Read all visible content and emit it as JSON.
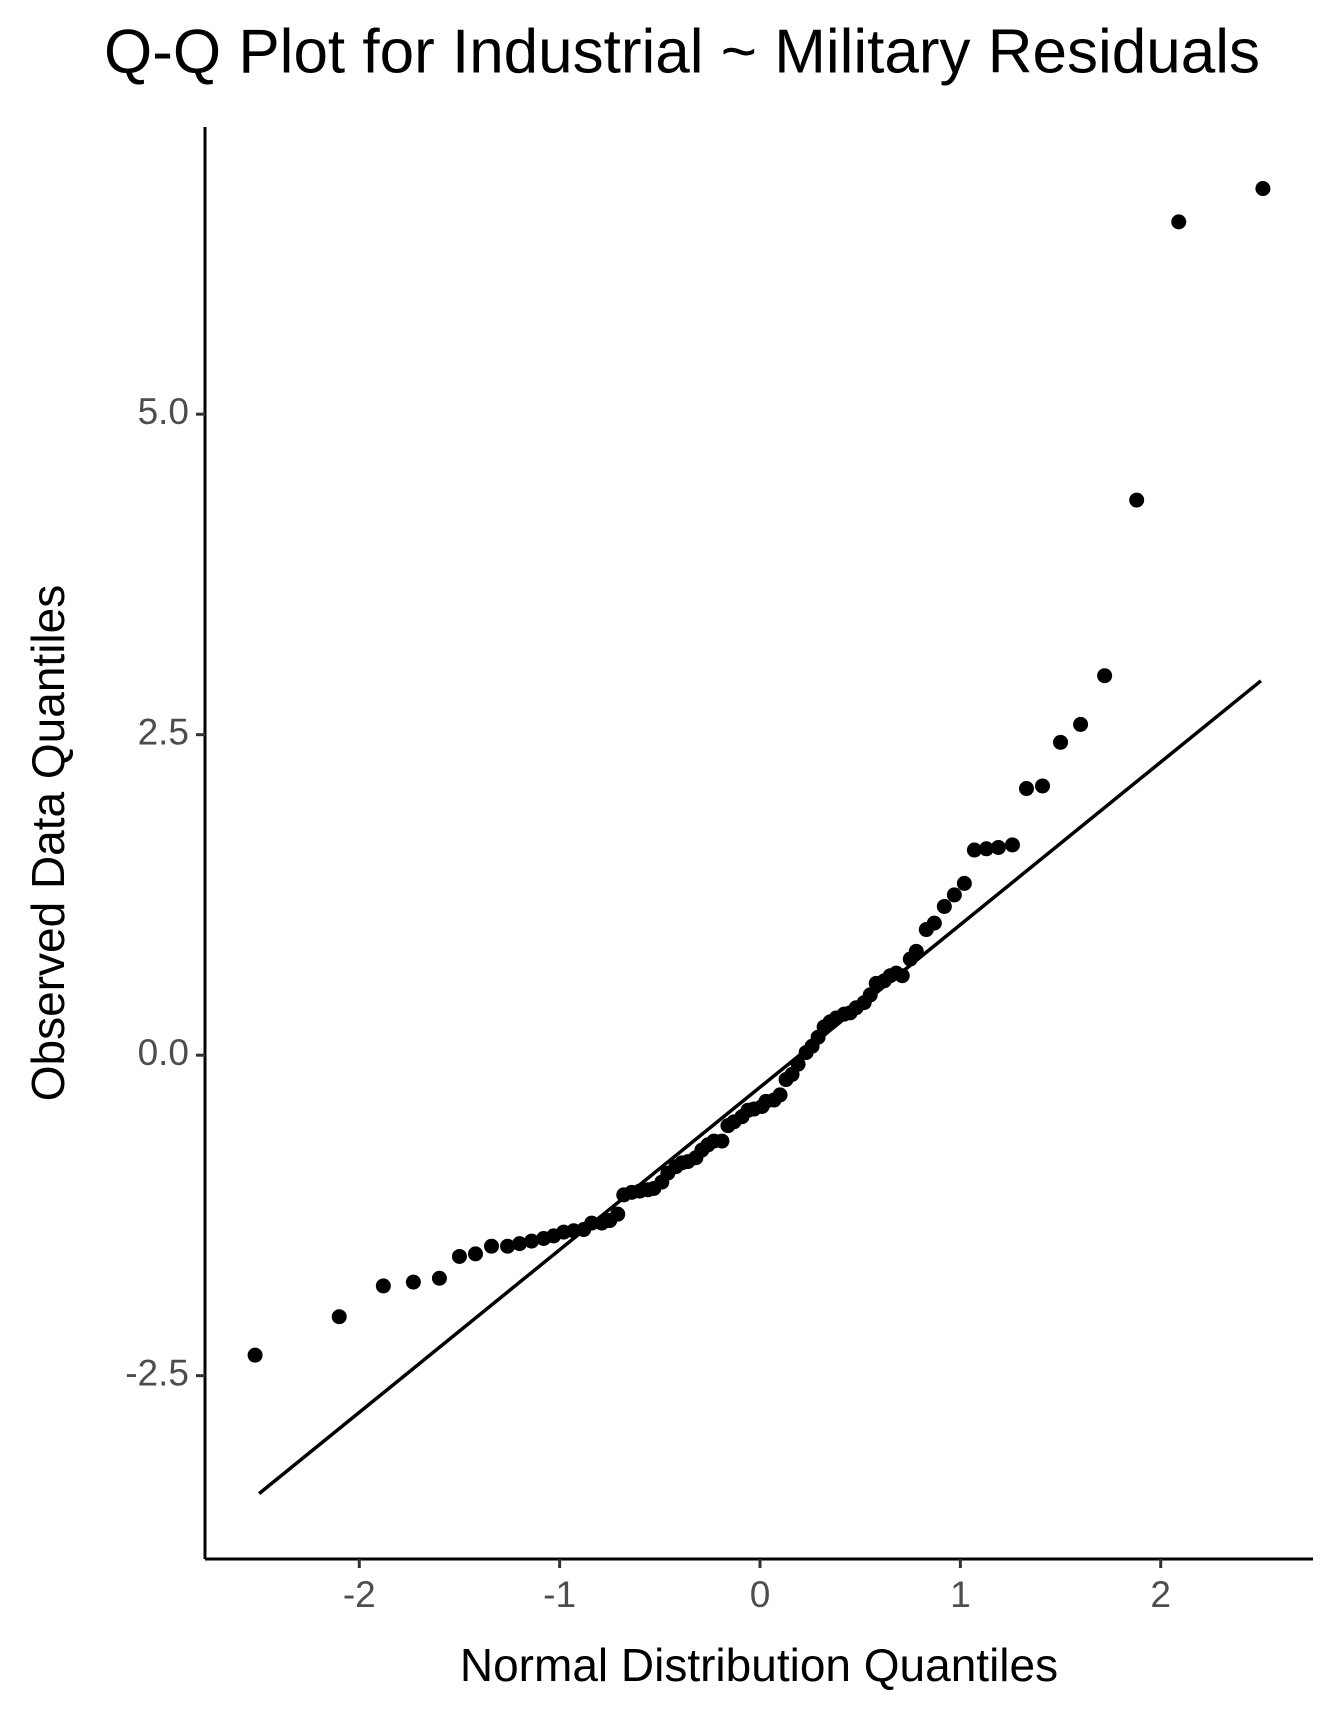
{
  "chart_data": {
    "type": "scatter",
    "title": "Q-Q Plot for Industrial ~ Military Residuals",
    "x_label": "Normal Distribution Quantiles",
    "y_label": "Observed Data Quantiles",
    "color": "#000000",
    "xlim": [
      -2.77,
      2.76
    ],
    "ylim": [
      -3.93,
      7.24
    ],
    "xticks": [
      -2,
      -1,
      0,
      1,
      2
    ],
    "yticks": [
      -2.5,
      {
        "value": 0,
        "label": "0.0"
      },
      2.5,
      {
        "value": 5,
        "label": "5.0"
      }
    ],
    "x": [
      -2.52,
      -2.1,
      -1.88,
      -1.73,
      -1.6,
      -1.5,
      -1.42,
      -1.34,
      -1.26,
      -1.2,
      -1.14,
      -1.08,
      -1.03,
      -0.98,
      -0.93,
      -0.88,
      -0.84,
      -0.79,
      -0.75,
      -0.71,
      -0.68,
      -0.64,
      -0.6,
      -0.56,
      -0.53,
      -0.49,
      -0.46,
      -0.42,
      -0.39,
      -0.36,
      -0.32,
      -0.29,
      -0.26,
      -0.23,
      -0.19,
      -0.16,
      -0.13,
      -0.09,
      -0.06,
      -0.03,
      0.01,
      0.03,
      0.07,
      0.1,
      0.13,
      0.16,
      0.19,
      0.23,
      0.26,
      0.29,
      0.32,
      0.35,
      0.38,
      0.42,
      0.45,
      0.48,
      0.52,
      0.55,
      0.58,
      0.62,
      0.65,
      0.68,
      0.71,
      0.75,
      0.78,
      0.83,
      0.87,
      0.92,
      0.97,
      1.02,
      1.07,
      1.13,
      1.19,
      1.26,
      1.33,
      1.41,
      1.5,
      1.6,
      1.72,
      1.88,
      2.09,
      2.51
    ],
    "values": [
      -2.34,
      -2.04,
      -1.8,
      -1.77,
      -1.74,
      -1.57,
      -1.55,
      -1.49,
      -1.49,
      -1.47,
      -1.45,
      -1.43,
      -1.41,
      -1.38,
      -1.37,
      -1.36,
      -1.31,
      -1.31,
      -1.29,
      -1.24,
      -1.09,
      -1.07,
      -1.06,
      -1.05,
      -1.04,
      -0.99,
      -0.92,
      -0.87,
      -0.84,
      -0.83,
      -0.8,
      -0.74,
      -0.7,
      -0.67,
      -0.67,
      -0.55,
      -0.52,
      -0.48,
      -0.43,
      -0.42,
      -0.4,
      -0.36,
      -0.35,
      -0.31,
      -0.19,
      -0.15,
      -0.07,
      0.02,
      0.07,
      0.14,
      0.22,
      0.26,
      0.29,
      0.32,
      0.33,
      0.37,
      0.41,
      0.47,
      0.56,
      0.58,
      0.62,
      0.64,
      0.62,
      0.75,
      0.81,
      0.98,
      1.03,
      1.16,
      1.25,
      1.34,
      1.6,
      1.61,
      1.62,
      1.64,
      2.08,
      2.1,
      2.44,
      2.58,
      2.96,
      4.33,
      6.5,
      6.76
    ],
    "reference_line": {
      "x": [
        -2.5,
        2.5
      ],
      "y": [
        -3.42,
        2.92
      ]
    }
  }
}
